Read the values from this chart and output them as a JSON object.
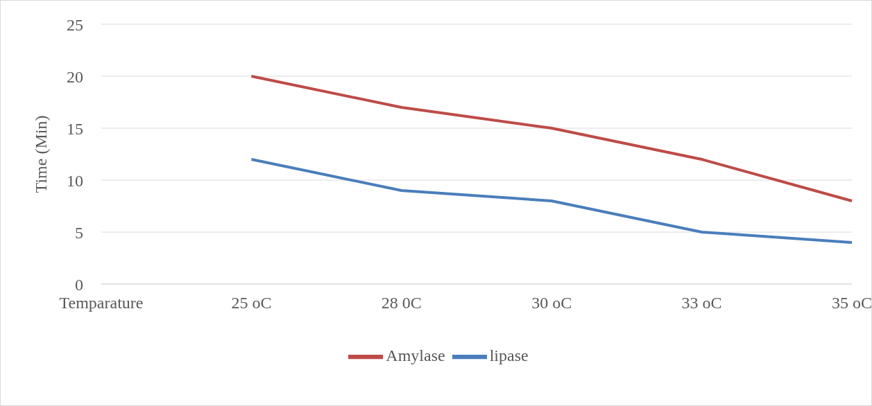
{
  "chart_data": {
    "type": "line",
    "ylabel": "Time (Min)",
    "categories": [
      "Temparature",
      "25 oC",
      "28 0C",
      "30 oC",
      "33 oC",
      "35 oC"
    ],
    "series": [
      {
        "name": "lipase",
        "color": "#4a7ebb",
        "values": [
          null,
          12,
          9,
          8,
          5,
          4
        ]
      },
      {
        "name": "Amylase",
        "color": "#be4b48",
        "values": [
          null,
          20,
          17,
          15,
          12,
          8
        ]
      }
    ],
    "ylim": [
      0,
      25
    ],
    "yticks": [
      0,
      5,
      10,
      15,
      20,
      25
    ],
    "grid": "y",
    "legend": "bottom"
  }
}
